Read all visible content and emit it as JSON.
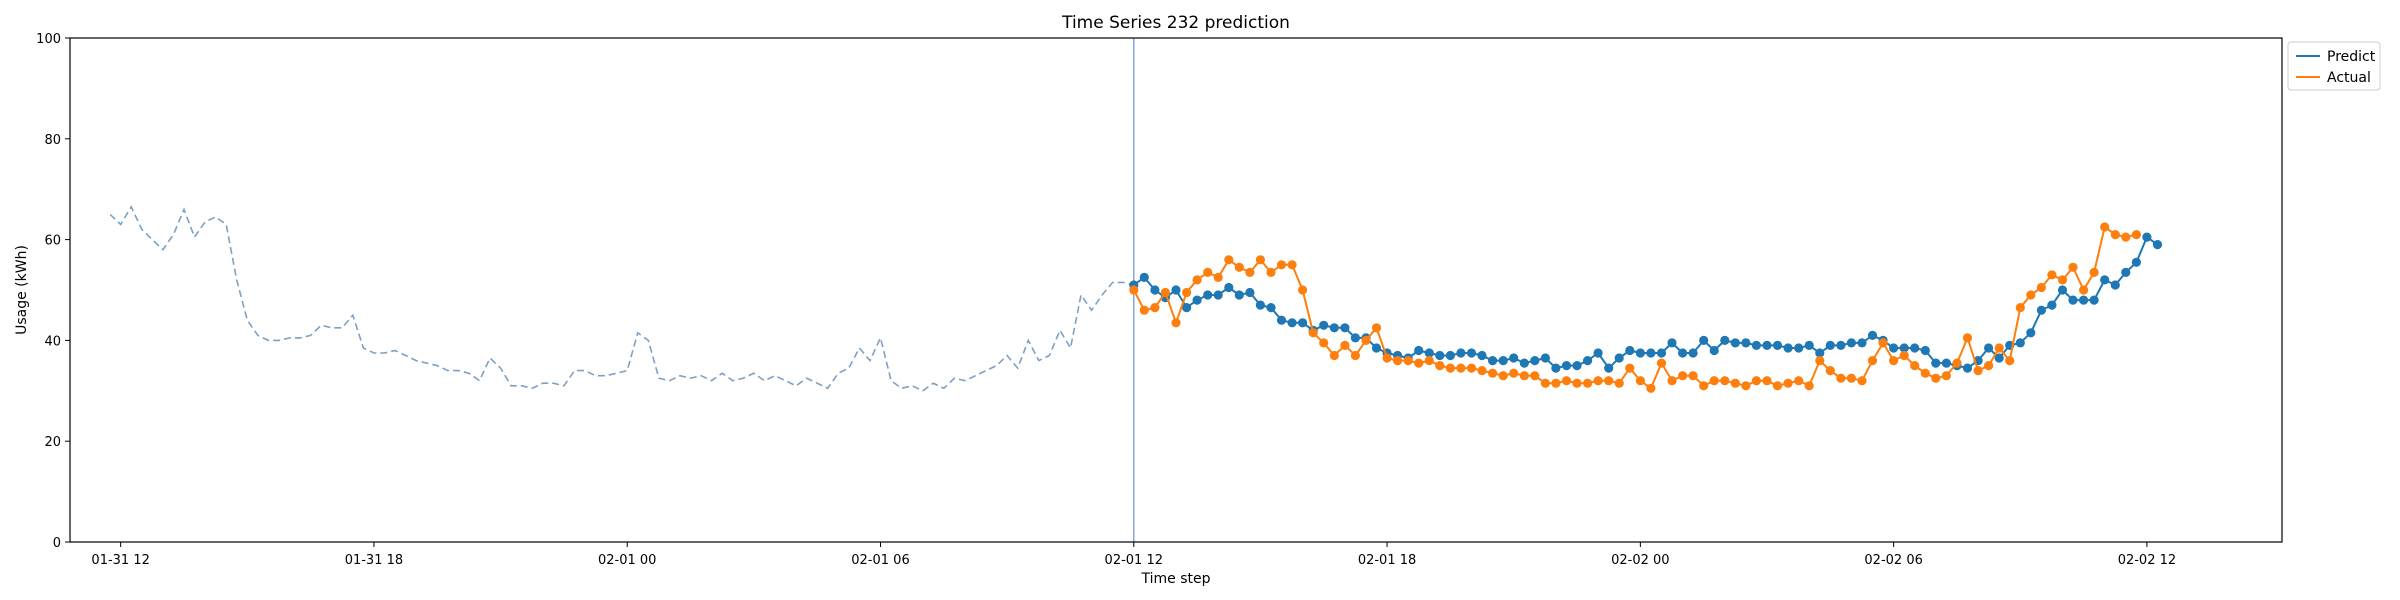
{
  "chart_data": {
    "type": "line",
    "title": "Time Series 232 prediction",
    "xlabel": "Time step",
    "ylabel": "Usage (kWh)",
    "ylim": [
      0,
      100
    ],
    "yticks": [
      0,
      20,
      40,
      60,
      80,
      100
    ],
    "xlim_hours": [
      -1.2,
      51.2
    ],
    "xticks": [
      {
        "hour": 0,
        "label": "01-31 12"
      },
      {
        "hour": 6,
        "label": "01-31 18"
      },
      {
        "hour": 12,
        "label": "02-01 00"
      },
      {
        "hour": 18,
        "label": "02-01 06"
      },
      {
        "hour": 24,
        "label": "02-01 12"
      },
      {
        "hour": 30,
        "label": "02-01 18"
      },
      {
        "hour": 36,
        "label": "02-02 00"
      },
      {
        "hour": 42,
        "label": "02-02 06"
      },
      {
        "hour": 48,
        "label": "02-02 12"
      }
    ],
    "split_hour": 24,
    "interval_hours": 0.25,
    "history": {
      "start_hour": -0.25,
      "color": "#7f9fc5",
      "values": [
        65.0,
        63.0,
        66.5,
        62.0,
        60.0,
        58.0,
        61.0,
        66.0,
        60.5,
        63.5,
        64.5,
        63.0,
        52.0,
        44.0,
        41.0,
        40.0,
        40.0,
        40.5,
        40.5,
        41.0,
        43.0,
        42.5,
        42.5,
        45.0,
        38.5,
        37.5,
        37.5,
        38.0,
        37.0,
        36.0,
        35.5,
        35.0,
        34.0,
        34.0,
        33.5,
        32.0,
        36.5,
        34.5,
        31.0,
        31.0,
        30.5,
        31.5,
        31.5,
        31.0,
        34.0,
        34.0,
        33.0,
        33.0,
        33.5,
        34.0,
        41.5,
        40.0,
        32.5,
        32.0,
        33.0,
        32.5,
        33.0,
        32.0,
        33.5,
        32.0,
        32.5,
        33.5,
        32.0,
        33.0,
        32.0,
        31.0,
        32.5,
        31.5,
        30.5,
        33.5,
        34.5,
        38.5,
        36.0,
        40.5,
        32.0,
        30.5,
        31.0,
        30.0,
        31.5,
        30.5,
        32.5,
        32.0,
        33.0,
        34.0,
        35.0,
        37.0,
        34.5,
        40.0,
        36.0,
        37.0,
        42.0,
        38.5,
        49.0,
        46.0,
        49.0,
        51.5,
        51.5,
        51.0
      ]
    },
    "series": [
      {
        "name": "Predict",
        "color": "#1f77b4",
        "start_hour": 24,
        "values": [
          51.0,
          52.5,
          50.0,
          48.5,
          50.0,
          46.5,
          48.0,
          49.0,
          49.0,
          50.5,
          49.0,
          49.5,
          47.0,
          46.5,
          44.0,
          43.5,
          43.5,
          42.0,
          43.0,
          42.5,
          42.5,
          40.5,
          40.5,
          38.5,
          37.5,
          37.0,
          36.5,
          38.0,
          37.5,
          37.0,
          37.0,
          37.5,
          37.5,
          37.0,
          36.0,
          36.0,
          36.5,
          35.5,
          36.0,
          36.5,
          34.5,
          35.0,
          35.0,
          36.0,
          37.5,
          34.5,
          36.5,
          38.0,
          37.5,
          37.5,
          37.5,
          39.5,
          37.5,
          37.5,
          40.0,
          38.0,
          40.0,
          39.5,
          39.5,
          39.0,
          39.0,
          39.0,
          38.5,
          38.5,
          39.0,
          37.5,
          39.0,
          39.0,
          39.5,
          39.5,
          41.0,
          40.0,
          38.5,
          38.5,
          38.5,
          38.0,
          35.5,
          35.5,
          35.0,
          34.5,
          36.0,
          38.5,
          36.5,
          39.0,
          39.5,
          41.5,
          46.0,
          47.0,
          50.0,
          48.0,
          48.0,
          48.0,
          52.0,
          51.0,
          53.5,
          55.5,
          60.5,
          59.0
        ]
      },
      {
        "name": "Actual",
        "color": "#ff7f0e",
        "start_hour": 24,
        "values": [
          50.0,
          46.0,
          46.5,
          49.5,
          43.5,
          49.5,
          52.0,
          53.5,
          52.5,
          56.0,
          54.5,
          53.5,
          56.0,
          53.5,
          55.0,
          55.0,
          50.0,
          41.5,
          39.5,
          37.0,
          39.0,
          37.0,
          40.0,
          42.5,
          36.5,
          36.0,
          36.0,
          35.5,
          36.0,
          35.0,
          34.5,
          34.5,
          34.5,
          34.0,
          33.5,
          33.0,
          33.5,
          33.0,
          33.0,
          31.5,
          31.5,
          32.0,
          31.5,
          31.5,
          32.0,
          32.0,
          31.5,
          34.5,
          32.0,
          30.5,
          35.5,
          32.0,
          33.0,
          33.0,
          31.0,
          32.0,
          32.0,
          31.5,
          31.0,
          32.0,
          32.0,
          31.0,
          31.5,
          32.0,
          31.0,
          36.0,
          34.0,
          32.5,
          32.5,
          32.0,
          36.0,
          39.5,
          36.0,
          37.0,
          35.0,
          33.5,
          32.5,
          33.0,
          35.5,
          40.5,
          34.0,
          35.0,
          38.5,
          36.0,
          46.5,
          49.0,
          50.5,
          53.0,
          52.0,
          54.5,
          50.0,
          53.5,
          62.5,
          61.0,
          60.5,
          61.0
        ]
      }
    ],
    "legend": {
      "position": "top-right",
      "entries": [
        "Predict",
        "Actual"
      ]
    }
  }
}
